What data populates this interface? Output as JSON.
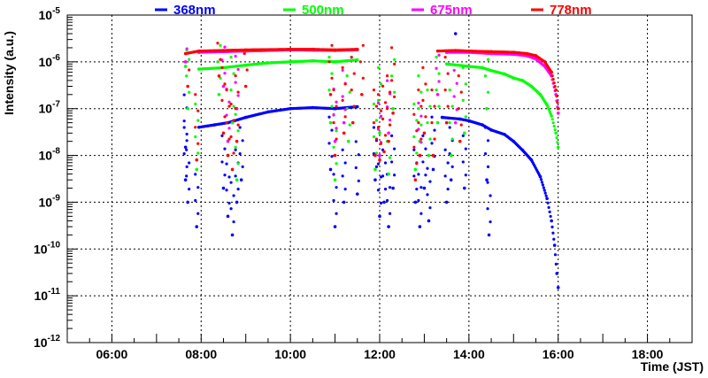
{
  "chart_data": {
    "type": "scatter",
    "title": "",
    "xlabel": "Time (JST)",
    "ylabel": "Intensity (a.u.)",
    "xlim": [
      5,
      19
    ],
    "ylim": [
      1e-12,
      1e-05
    ],
    "yscale": "log",
    "grid": true,
    "legend_position": "top",
    "x_ticks": [
      {
        "value": 6,
        "label": "06:00"
      },
      {
        "value": 8,
        "label": "08:00"
      },
      {
        "value": 10,
        "label": "10:00"
      },
      {
        "value": 12,
        "label": "12:00"
      },
      {
        "value": 14,
        "label": "14:00"
      },
      {
        "value": 16,
        "label": "16:00"
      },
      {
        "value": 18,
        "label": "18:00"
      }
    ],
    "y_ticks": [
      {
        "exp": -5,
        "base": "10",
        "sup": "-5"
      },
      {
        "exp": -6,
        "base": "10",
        "sup": "-6"
      },
      {
        "exp": -7,
        "base": "10",
        "sup": "-7"
      },
      {
        "exp": -8,
        "base": "10",
        "sup": "-8"
      },
      {
        "exp": -9,
        "base": "10",
        "sup": "-9"
      },
      {
        "exp": -10,
        "base": "10",
        "sup": "-10"
      },
      {
        "exp": -11,
        "base": "10",
        "sup": "-11"
      },
      {
        "exp": -12,
        "base": "10",
        "sup": "-12"
      }
    ],
    "series": [
      {
        "name": "368nm",
        "color": "#0000ff",
        "curve": [
          [
            7.95,
            4e-08
          ],
          [
            8.3,
            4.5e-08
          ],
          [
            8.6,
            5e-08
          ],
          [
            9.0,
            6.5e-08
          ],
          [
            9.5,
            8.5e-08
          ],
          [
            10.0,
            1e-07
          ],
          [
            10.5,
            1.05e-07
          ],
          [
            11.0,
            1e-07
          ],
          [
            11.5,
            1.1e-07
          ],
          [
            13.4,
            6.5e-08
          ],
          [
            13.8,
            6e-08
          ],
          [
            14.0,
            5.5e-08
          ],
          [
            14.3,
            4.5e-08
          ],
          [
            14.5,
            3.5e-08
          ],
          [
            14.8,
            2.8e-08
          ],
          [
            15.0,
            2e-08
          ],
          [
            15.2,
            1.3e-08
          ],
          [
            15.4,
            8e-09
          ],
          [
            15.6,
            3.5e-09
          ],
          [
            15.75,
            1.2e-09
          ],
          [
            15.85,
            4e-10
          ],
          [
            15.92,
            1.2e-10
          ],
          [
            15.97,
            3e-11
          ],
          [
            16.0,
            1.5e-11
          ]
        ],
        "scatter": [
          [
            7.65,
            1.5e-08
          ],
          [
            7.65,
            3e-09
          ],
          [
            7.7,
            1e-09
          ],
          [
            7.9,
            3e-10
          ],
          [
            8.5,
            2e-09
          ],
          [
            8.6,
            5e-10
          ],
          [
            8.7,
            2e-10
          ],
          [
            8.8,
            1e-09
          ],
          [
            8.9,
            3e-09
          ],
          [
            10.9,
            5e-09
          ],
          [
            11.0,
            3e-10
          ],
          [
            11.2,
            1e-09
          ],
          [
            11.5,
            1.5e-09
          ],
          [
            11.9,
            3e-09
          ],
          [
            12.0,
            5e-10
          ],
          [
            12.1,
            1e-09
          ],
          [
            12.2,
            3e-10
          ],
          [
            12.3,
            2e-09
          ],
          [
            12.8,
            1e-09
          ],
          [
            12.9,
            3e-10
          ],
          [
            13.0,
            2e-09
          ],
          [
            13.1,
            4e-10
          ],
          [
            13.2,
            5e-09
          ],
          [
            13.5,
            1e-09
          ],
          [
            13.6,
            3e-09
          ],
          [
            13.7,
            4e-06
          ],
          [
            13.9,
            2e-09
          ],
          [
            14.4,
            3e-09
          ],
          [
            14.45,
            2e-10
          ]
        ]
      },
      {
        "name": "500nm",
        "color": "#00ff00",
        "curve": [
          [
            7.95,
            7e-07
          ],
          [
            8.5,
            7.5e-07
          ],
          [
            9.0,
            8.5e-07
          ],
          [
            9.5,
            9.5e-07
          ],
          [
            10.0,
            1e-06
          ],
          [
            10.5,
            1.05e-06
          ],
          [
            11.0,
            1e-06
          ],
          [
            11.5,
            1.1e-06
          ],
          [
            13.5,
            9e-07
          ],
          [
            14.0,
            8e-07
          ],
          [
            14.3,
            7.5e-07
          ],
          [
            14.5,
            6.5e-07
          ],
          [
            14.8,
            5.5e-07
          ],
          [
            15.0,
            4.5e-07
          ],
          [
            15.2,
            4e-07
          ],
          [
            15.4,
            3e-07
          ],
          [
            15.6,
            2e-07
          ],
          [
            15.75,
            1.2e-07
          ],
          [
            15.85,
            7e-08
          ],
          [
            15.95,
            3e-08
          ],
          [
            16.0,
            1.5e-08
          ]
        ],
        "scatter": [
          [
            7.65,
            8e-07
          ],
          [
            7.7,
            1e-07
          ],
          [
            7.9,
            5e-09
          ],
          [
            8.4,
            2e-07
          ],
          [
            8.6,
            1e-08
          ],
          [
            8.7,
            5e-08
          ],
          [
            8.8,
            3e-09
          ],
          [
            10.9,
            5e-08
          ],
          [
            11.0,
            3e-09
          ],
          [
            11.3,
            2e-08
          ],
          [
            11.9,
            5e-09
          ],
          [
            12.0,
            3e-08
          ],
          [
            12.2,
            4e-09
          ],
          [
            12.3,
            1e-07
          ],
          [
            12.8,
            5e-09
          ],
          [
            12.9,
            2e-08
          ],
          [
            13.1,
            1e-08
          ],
          [
            13.3,
            5e-08
          ],
          [
            13.6,
            1e-08
          ],
          [
            13.9,
            3e-08
          ],
          [
            14.4,
            1e-07
          ]
        ]
      },
      {
        "name": "675nm",
        "color": "#ff00ff",
        "curve": [
          [
            7.95,
            1.6e-06
          ],
          [
            8.5,
            1.65e-06
          ],
          [
            9.0,
            1.7e-06
          ],
          [
            10.0,
            1.8e-06
          ],
          [
            11.0,
            1.75e-06
          ],
          [
            11.5,
            1.8e-06
          ],
          [
            13.5,
            1.6e-06
          ],
          [
            14.0,
            1.6e-06
          ],
          [
            14.5,
            1.5e-06
          ],
          [
            15.0,
            1.45e-06
          ],
          [
            15.3,
            1.35e-06
          ],
          [
            15.5,
            1.15e-06
          ],
          [
            15.7,
            8e-07
          ],
          [
            15.85,
            5e-07
          ],
          [
            15.95,
            2e-07
          ],
          [
            16.0,
            8e-08
          ]
        ],
        "scatter": [
          [
            7.65,
            1e-06
          ],
          [
            8.5,
            3e-07
          ],
          [
            8.6,
            2e-08
          ],
          [
            8.8,
            1e-07
          ],
          [
            11.0,
            2e-08
          ],
          [
            11.2,
            5e-08
          ],
          [
            12.0,
            1e-08
          ],
          [
            12.2,
            3e-08
          ],
          [
            12.9,
            1e-08
          ],
          [
            13.3,
            2e-07
          ],
          [
            13.7,
            5e-08
          ]
        ]
      },
      {
        "name": "778nm",
        "color": "#ff0000",
        "curve": [
          [
            7.65,
            1.5e-06
          ],
          [
            7.95,
            1.7e-06
          ],
          [
            8.5,
            1.75e-06
          ],
          [
            9.0,
            1.8e-06
          ],
          [
            10.0,
            1.85e-06
          ],
          [
            10.5,
            1.85e-06
          ],
          [
            11.0,
            1.8e-06
          ],
          [
            11.5,
            1.85e-06
          ],
          [
            13.3,
            1.7e-06
          ],
          [
            13.7,
            1.75e-06
          ],
          [
            14.0,
            1.7e-06
          ],
          [
            14.5,
            1.65e-06
          ],
          [
            15.0,
            1.6e-06
          ],
          [
            15.3,
            1.5e-06
          ],
          [
            15.5,
            1.35e-06
          ],
          [
            15.7,
            1e-06
          ],
          [
            15.85,
            6e-07
          ],
          [
            15.95,
            2.5e-07
          ],
          [
            16.0,
            1e-07
          ]
        ],
        "scatter": [
          [
            7.7,
            3e-07
          ],
          [
            7.9,
            8e-09
          ],
          [
            8.4,
            5e-07
          ],
          [
            8.5,
            3e-08
          ],
          [
            8.6,
            1e-08
          ],
          [
            8.7,
            5e-09
          ],
          [
            8.8,
            2e-08
          ],
          [
            9.0,
            3e-07
          ],
          [
            10.9,
            2e-07
          ],
          [
            11.0,
            1e-08
          ],
          [
            11.2,
            3e-08
          ],
          [
            11.4,
            5e-08
          ],
          [
            11.6,
            2e-07
          ],
          [
            11.9,
            1e-08
          ],
          [
            12.0,
            8e-09
          ],
          [
            12.1,
            1.2e-08
          ],
          [
            12.2,
            2e-08
          ],
          [
            12.3,
            8e-08
          ],
          [
            12.8,
            3e-09
          ],
          [
            12.9,
            1e-08
          ],
          [
            13.0,
            3e-08
          ],
          [
            13.2,
            1e-08
          ],
          [
            13.5,
            5e-08
          ],
          [
            13.8,
            2e-08
          ]
        ]
      }
    ]
  }
}
